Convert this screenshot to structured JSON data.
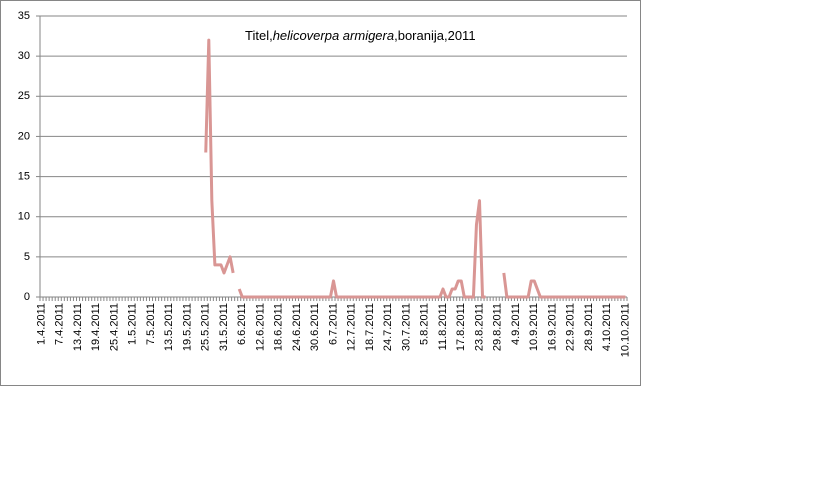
{
  "chart_data": {
    "type": "line",
    "title": [
      {
        "text": "Titel,"
      },
      {
        "text": "helicoverpa armigera",
        "italic": true
      },
      {
        "text": ",boranija,2011"
      }
    ],
    "categories": [
      "1.4.2011",
      null,
      null,
      null,
      null,
      null,
      "7.4.2011",
      null,
      null,
      null,
      null,
      null,
      "13.4.2011",
      null,
      null,
      null,
      null,
      null,
      "19.4.2011",
      null,
      null,
      null,
      null,
      null,
      "25.4.2011",
      null,
      null,
      null,
      null,
      null,
      "1.5.2011",
      null,
      null,
      null,
      null,
      null,
      "7.5.2011",
      null,
      null,
      null,
      null,
      null,
      "13.5.2011",
      null,
      null,
      null,
      null,
      null,
      "19.5.2011",
      null,
      null,
      null,
      null,
      null,
      "25.5.2011",
      null,
      null,
      null,
      null,
      null,
      "31.5.2011",
      null,
      null,
      null,
      null,
      null,
      "6.6.2011",
      null,
      null,
      null,
      null,
      null,
      "12.6.2011",
      null,
      null,
      null,
      null,
      null,
      "18.6.2011",
      null,
      null,
      null,
      null,
      null,
      "24.6.2011",
      null,
      null,
      null,
      null,
      null,
      "30.6.2011",
      null,
      null,
      null,
      null,
      null,
      "6.7.2011",
      null,
      null,
      null,
      null,
      null,
      "12.7.2011",
      null,
      null,
      null,
      null,
      null,
      "18.7.2011",
      null,
      null,
      null,
      null,
      null,
      "24.7.2011",
      null,
      null,
      null,
      null,
      null,
      "30.7.2011",
      null,
      null,
      null,
      null,
      null,
      "5.8.2011",
      null,
      null,
      null,
      null,
      null,
      "11.8.2011",
      null,
      null,
      null,
      null,
      null,
      "17.8.2011",
      null,
      null,
      null,
      null,
      null,
      "23.8.2011",
      null,
      null,
      null,
      null,
      null,
      "29.8.2011",
      null,
      null,
      null,
      null,
      null,
      "4.9.2011",
      null,
      null,
      null,
      null,
      null,
      "10.9.2011",
      null,
      null,
      null,
      null,
      null,
      "16.9.2011",
      null,
      null,
      null,
      null,
      null,
      "22.9.2011",
      null,
      null,
      null,
      null,
      null,
      "28.9.2011",
      null,
      null,
      null,
      null,
      null,
      "4.10.2011",
      null,
      null,
      null,
      null,
      null,
      "10.10.2011"
    ],
    "values": [
      null,
      null,
      null,
      null,
      null,
      null,
      null,
      null,
      null,
      null,
      null,
      null,
      null,
      null,
      null,
      null,
      null,
      null,
      null,
      null,
      null,
      null,
      null,
      null,
      null,
      null,
      null,
      null,
      null,
      null,
      null,
      null,
      null,
      null,
      null,
      null,
      null,
      null,
      null,
      null,
      null,
      null,
      null,
      null,
      null,
      null,
      null,
      null,
      null,
      null,
      null,
      null,
      null,
      null,
      18,
      32,
      12,
      4,
      4,
      4,
      3,
      4,
      5,
      3,
      null,
      1,
      0,
      0,
      0,
      0,
      0,
      0,
      0,
      0,
      0,
      0,
      0,
      0,
      0,
      0,
      0,
      0,
      0,
      0,
      0,
      0,
      0,
      0,
      0,
      0,
      0,
      0,
      0,
      0,
      0,
      0,
      2,
      0,
      0,
      0,
      0,
      0,
      0,
      0,
      0,
      0,
      0,
      0,
      0,
      0,
      0,
      0,
      0,
      0,
      0,
      0,
      0,
      0,
      0,
      0,
      0,
      0,
      0,
      0,
      0,
      0,
      0,
      0,
      0,
      0,
      0,
      0,
      1,
      0,
      0,
      1,
      1,
      2,
      2,
      0,
      0,
      0,
      0,
      9,
      12,
      0,
      0,
      null,
      null,
      null,
      null,
      null,
      3,
      0,
      0,
      0,
      0,
      0,
      0,
      0,
      0,
      2,
      2,
      1,
      0,
      0,
      0,
      0,
      0,
      0,
      0,
      0,
      0,
      0,
      0,
      0,
      0,
      0,
      0,
      0,
      0,
      0,
      0,
      0,
      0,
      0,
      0,
      0,
      0,
      0,
      0,
      0,
      0
    ],
    "color": "#d99694",
    "ylim": [
      0,
      35
    ],
    "yticks": [
      0,
      5,
      10,
      15,
      20,
      25,
      30,
      35
    ],
    "grid": true
  }
}
